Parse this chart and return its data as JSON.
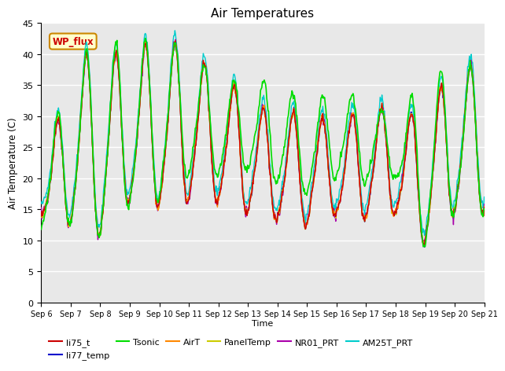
{
  "title": "Air Temperatures",
  "ylabel": "Air Temperature (C)",
  "xlabel": "Time",
  "ylim": [
    0,
    45
  ],
  "background_color": "#ffffff",
  "plot_bg_color": "#e8e8e8",
  "grid_color": "#ffffff",
  "series": {
    "li75_t": {
      "color": "#cc0000",
      "lw": 1.0
    },
    "li77_temp": {
      "color": "#0000cc",
      "lw": 1.0
    },
    "Tsonic": {
      "color": "#00dd00",
      "lw": 1.2
    },
    "AirT": {
      "color": "#ff8800",
      "lw": 1.0
    },
    "PanelTemp": {
      "color": "#cccc00",
      "lw": 1.0
    },
    "NR01_PRT": {
      "color": "#aa00aa",
      "lw": 1.0
    },
    "AM25T_PRT": {
      "color": "#00cccc",
      "lw": 1.0
    }
  },
  "xtick_labels": [
    "Sep 6",
    "Sep 7",
    "Sep 8",
    "Sep 9",
    "Sep 10",
    "Sep 11",
    "Sep 12",
    "Sep 13",
    "Sep 14",
    "Sep 15",
    "Sep 16",
    "Sep 17",
    "Sep 18",
    "Sep 19",
    "Sep 20",
    "Sep 21"
  ],
  "ytick_labels": [
    "0",
    "5",
    "10",
    "15",
    "20",
    "25",
    "30",
    "35",
    "40",
    "45"
  ],
  "annotation_text": "WP_flux",
  "annotation_color": "#cc0000",
  "annotation_bg": "#ffffcc",
  "annotation_border": "#cc8800",
  "legend_labels": [
    "li75_t",
    "li77_temp",
    "Tsonic",
    "AirT",
    "PanelTemp",
    "NR01_PRT",
    "AM25T_PRT"
  ]
}
